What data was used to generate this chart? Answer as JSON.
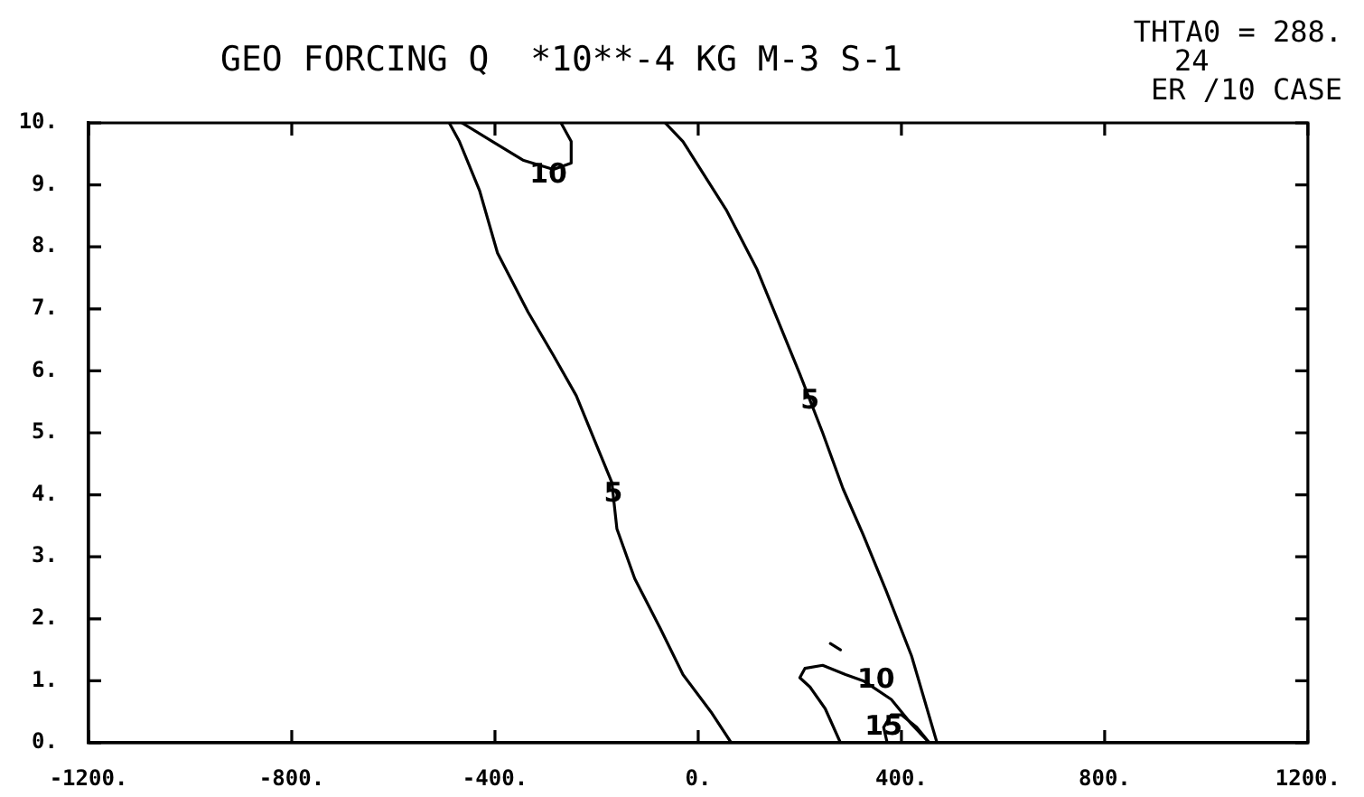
{
  "chart_data": {
    "type": "line",
    "title": "GEO FORCING Q  *10**-4 KG M-3 S-1",
    "annotations": [
      "THTA0 = 288.",
      "24",
      "ER /10 CASE",
      {
        "text": "5",
        "x": -167,
        "y": 4.0
      },
      {
        "text": "5",
        "x": 220,
        "y": 5.5
      },
      {
        "text": "10",
        "x": -295,
        "y": 9.15
      },
      {
        "text": "10",
        "x": 350,
        "y": 1.0
      },
      {
        "text": "15",
        "x": 365,
        "y": 0.25
      }
    ],
    "xlim": [
      -1200,
      1200
    ],
    "xticks": [
      {
        "value": -1200,
        "label": "-1200."
      },
      {
        "value": -800,
        "label": "-800."
      },
      {
        "value": -400,
        "label": "-400."
      },
      {
        "value": 0,
        "label": "0."
      },
      {
        "value": 400,
        "label": "400."
      },
      {
        "value": 800,
        "label": "800."
      },
      {
        "value": 1200,
        "label": "1200."
      }
    ],
    "ylim": [
      0,
      10
    ],
    "yticks": [
      {
        "value": 0,
        "label": "0."
      },
      {
        "value": 1,
        "label": "1."
      },
      {
        "value": 2,
        "label": "2."
      },
      {
        "value": 3,
        "label": "3."
      },
      {
        "value": 4,
        "label": "4."
      },
      {
        "value": 5,
        "label": "5."
      },
      {
        "value": 6,
        "label": "6."
      },
      {
        "value": 7,
        "label": "7."
      },
      {
        "value": 8,
        "label": "8."
      },
      {
        "value": 9,
        "label": "9."
      },
      {
        "value": 10,
        "label": "10."
      }
    ],
    "grid": false,
    "legend": false,
    "marker": "none",
    "line_style": "solid",
    "series": [
      {
        "color": "#000000",
        "x": [
          -490,
          -470,
          -430,
          -395,
          -335,
          -285,
          -240,
          -195,
          -170,
          -160,
          -125,
          -75,
          -30,
          25,
          65
        ],
        "values": [
          10,
          9.7,
          8.9,
          7.9,
          6.95,
          6.25,
          5.6,
          4.7,
          4.2,
          3.45,
          2.65,
          1.85,
          1.1,
          0.5,
          0
        ]
      },
      {
        "color": "#000000",
        "x": [
          -65,
          -30,
          55,
          115,
          160,
          200,
          245,
          285,
          325,
          370,
          420,
          470
        ],
        "values": [
          10,
          9.7,
          8.6,
          7.65,
          6.75,
          5.95,
          5.0,
          4.1,
          3.35,
          2.45,
          1.4,
          0
        ]
      },
      {
        "color": "#000000",
        "x": [
          -465,
          -405,
          -345,
          -285,
          -250,
          -250,
          -270
        ],
        "values": [
          10,
          9.7,
          9.4,
          9.25,
          9.35,
          9.7,
          10
        ]
      },
      {
        "color": "#000000",
        "x": [
          280,
          250,
          220,
          200,
          210,
          245,
          290,
          325,
          380,
          420,
          455
        ],
        "values": [
          0,
          0.55,
          0.9,
          1.05,
          1.2,
          1.25,
          1.1,
          1.0,
          0.7,
          0.3,
          0
        ]
      },
      {
        "color": "#000000",
        "x": [
          260,
          280
        ],
        "values": [
          1.6,
          1.5
        ]
      },
      {
        "color": "#000000",
        "x": [
          372,
          365,
          380,
          400,
          430,
          455
        ],
        "values": [
          0,
          0.25,
          0.45,
          0.45,
          0.25,
          0
        ]
      }
    ]
  }
}
